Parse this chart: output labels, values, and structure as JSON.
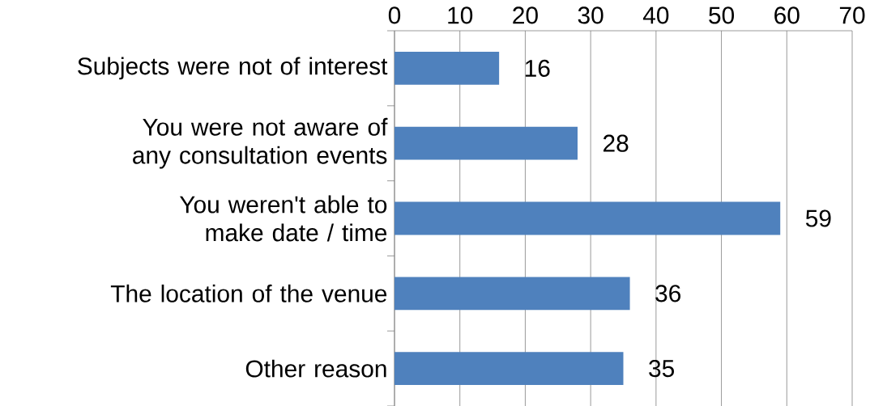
{
  "chart_data": {
    "type": "bar",
    "orientation": "horizontal",
    "categories": [
      "Subjects were not of interest",
      "You were not aware of any consultation events",
      "You weren't able to make date / time",
      "The location of the venue",
      "Other reason"
    ],
    "values": [
      16,
      28,
      59,
      36,
      35
    ],
    "color": "#4f81bd",
    "xlim": [
      0,
      70
    ],
    "xticks": [
      0,
      10,
      20,
      30,
      40,
      50,
      60,
      70
    ],
    "grid": "x",
    "data_labels": true
  }
}
